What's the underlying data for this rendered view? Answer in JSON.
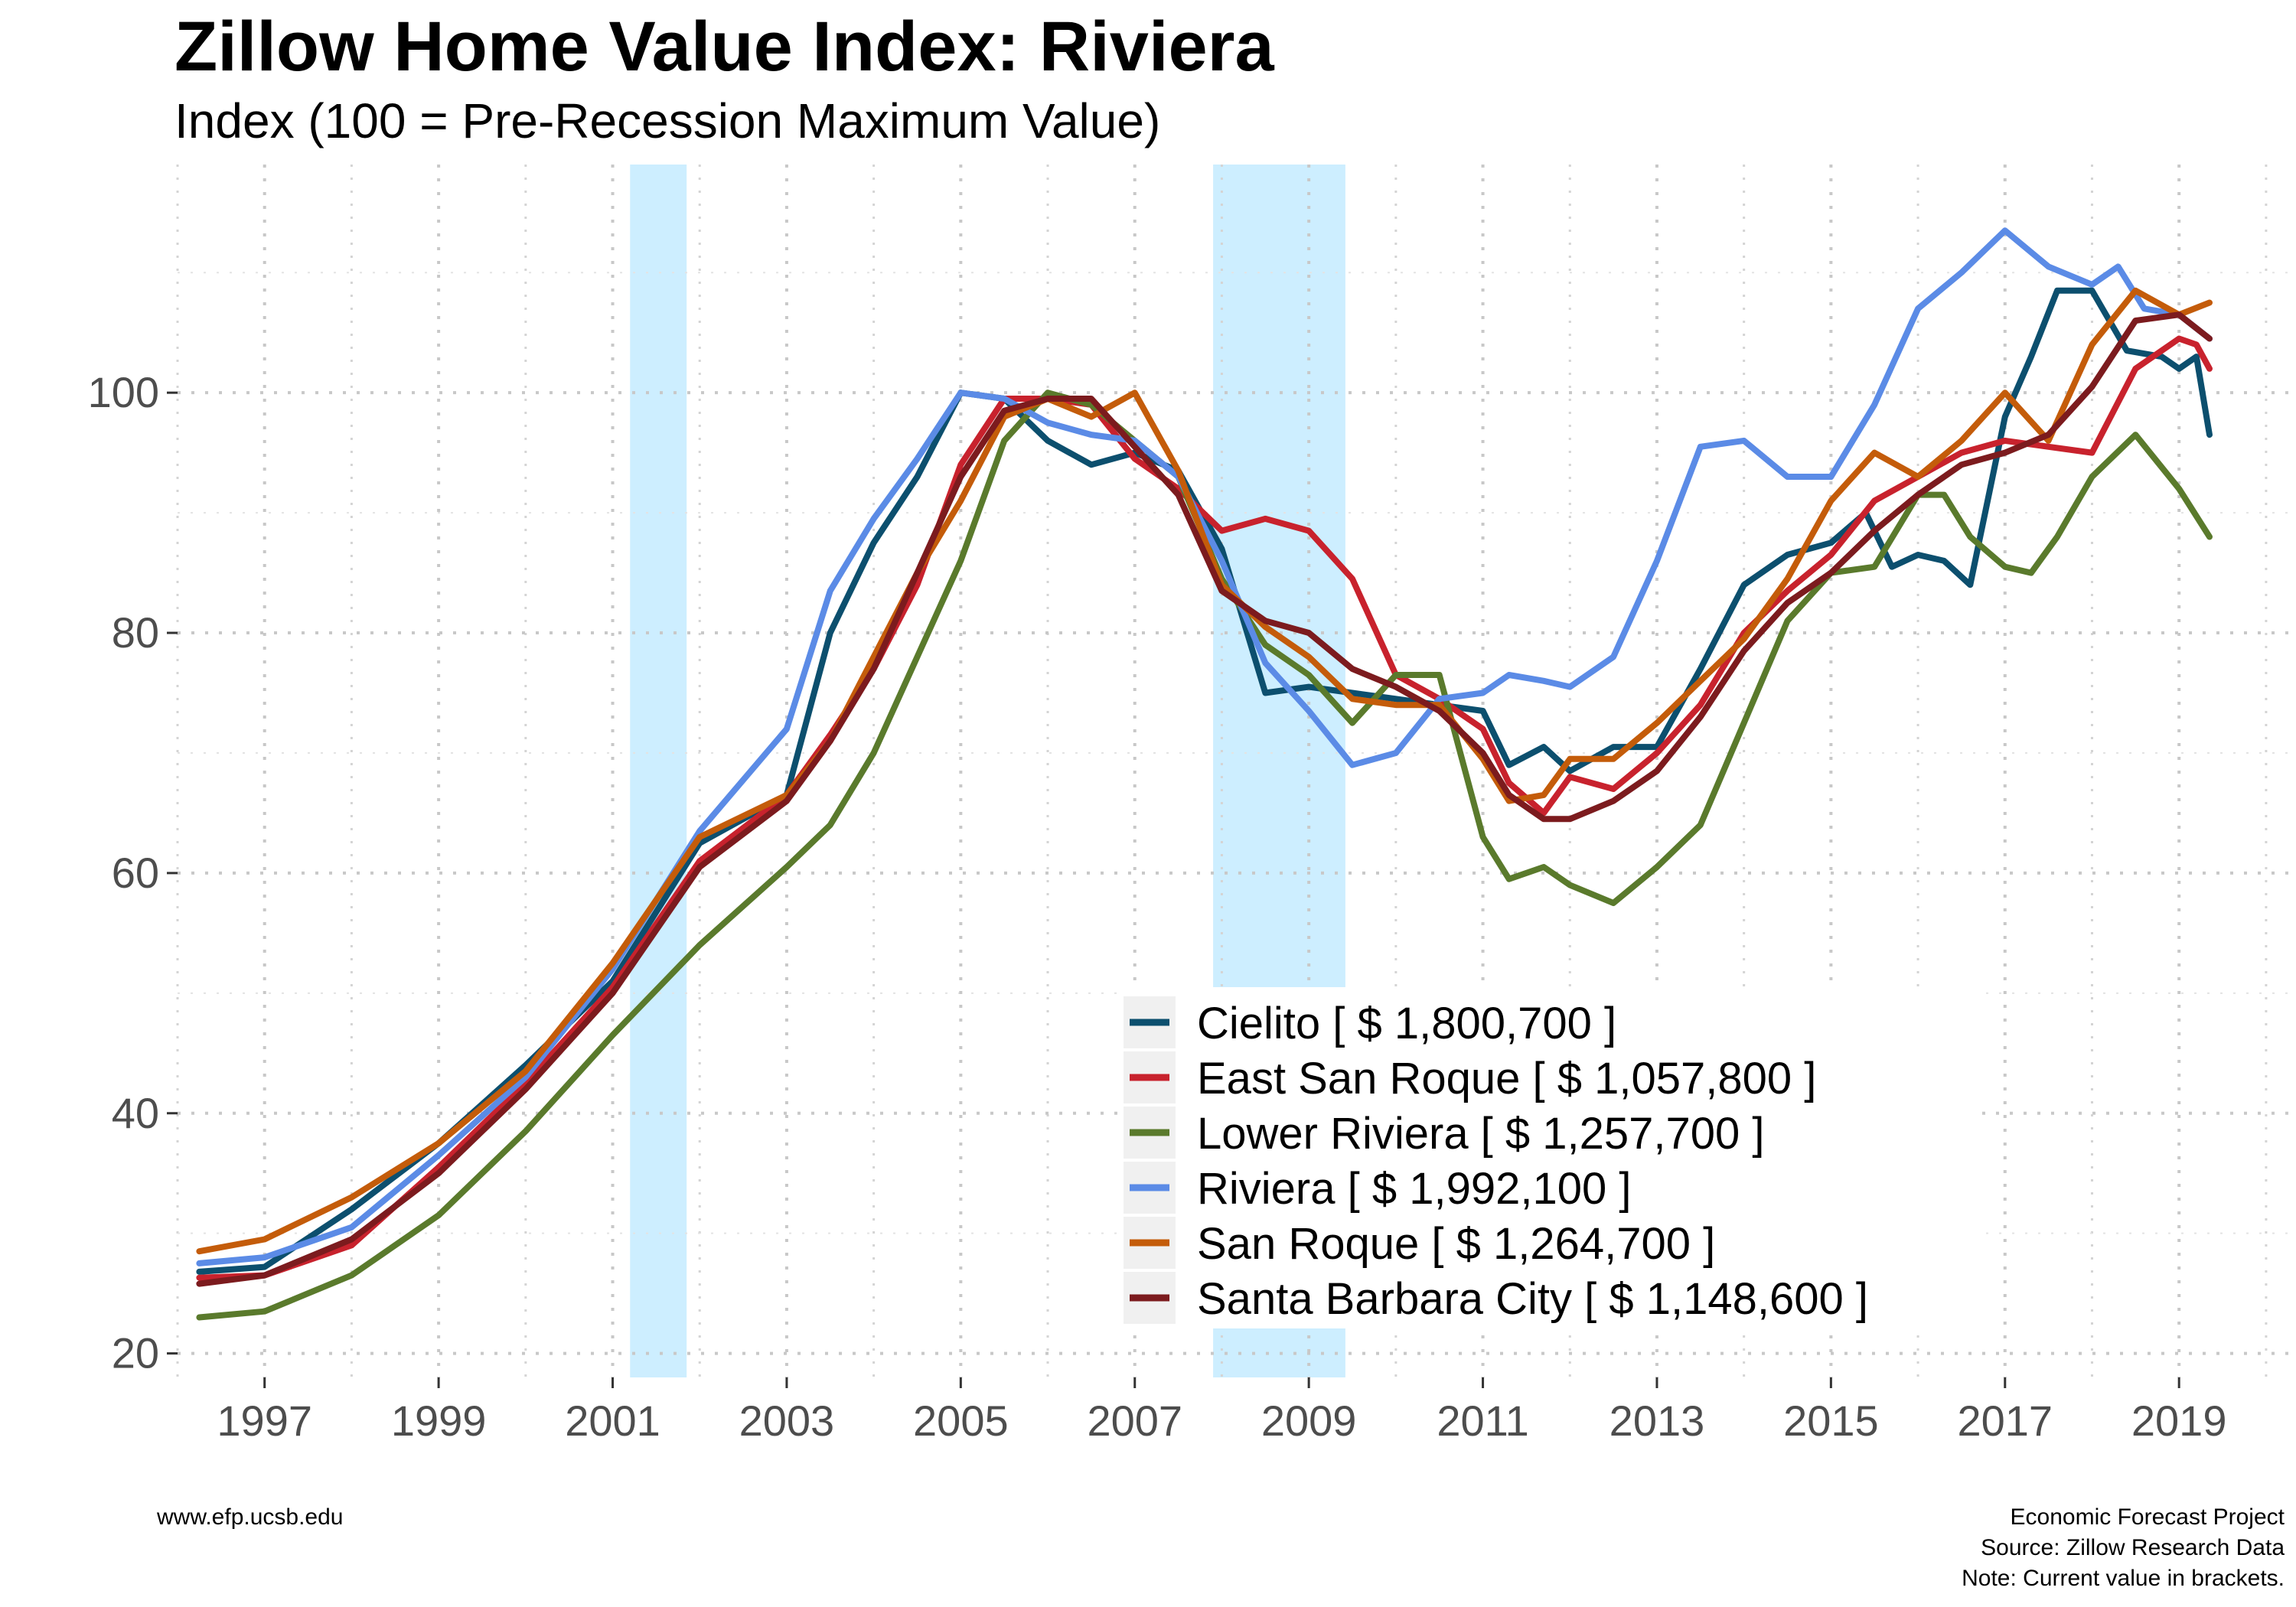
{
  "chart_data": {
    "type": "line",
    "title": "Zillow Home Value Index: Riviera",
    "subtitle": "Index (100 = Pre-Recession Maximum Value)",
    "xlim": [
      1996.0,
      2020.3
    ],
    "ylim": [
      18,
      119
    ],
    "x_ticks": [
      1997,
      1999,
      2001,
      2003,
      2005,
      2007,
      2009,
      2011,
      2013,
      2015,
      2017,
      2019
    ],
    "y_ticks": [
      20,
      40,
      60,
      80,
      100
    ],
    "grid": true,
    "grid_style": "dotted",
    "recessions": [
      {
        "start": 2001.2,
        "end": 2001.85
      },
      {
        "start": 2007.9,
        "end": 2009.42
      }
    ],
    "legend_position": "bottom-right",
    "series": [
      {
        "name": "Cielito [ $ 1,800,700 ]",
        "color": "#0c4f6e",
        "x": [
          1996.25,
          1997,
          1998,
          1999,
          2000,
          2001,
          2002,
          2003,
          2003.5,
          2004,
          2004.5,
          2005,
          2005.5,
          2006,
          2006.5,
          2007,
          2007.5,
          2008,
          2008.5,
          2009,
          2009.5,
          2010,
          2010.5,
          2011,
          2011.3,
          2011.7,
          2012,
          2012.5,
          2013,
          2013.5,
          2014,
          2014.5,
          2015,
          2015.4,
          2015.7,
          2016,
          2016.3,
          2016.6,
          2017,
          2017.3,
          2017.6,
          2018,
          2018.4,
          2018.8,
          2019,
          2019.2,
          2019.35
        ],
        "y": [
          26.8,
          27.2,
          32.0,
          37.5,
          44.0,
          51.0,
          62.5,
          66.5,
          80.0,
          87.5,
          93.0,
          100.0,
          99.5,
          96.0,
          94.0,
          95.0,
          93.5,
          87.0,
          75.0,
          75.5,
          75.0,
          74.5,
          74.0,
          73.5,
          69.0,
          70.5,
          68.5,
          70.5,
          70.5,
          77.0,
          84.0,
          86.5,
          87.5,
          90.0,
          85.5,
          86.5,
          86.0,
          84.0,
          98.0,
          103.0,
          108.5,
          108.5,
          103.5,
          103.0,
          102.0,
          103.0,
          96.5
        ]
      },
      {
        "name": "East San Roque [ $ 1,057,800 ]",
        "color": "#c8222d",
        "x": [
          1996.25,
          1997,
          1998,
          1999,
          2000,
          2001,
          2002,
          2003,
          2003.5,
          2004,
          2004.5,
          2005,
          2005.5,
          2006,
          2006.5,
          2007,
          2007.5,
          2008,
          2008.5,
          2009,
          2009.5,
          2010,
          2010.5,
          2011,
          2011.3,
          2011.7,
          2012,
          2012.5,
          2013,
          2013.5,
          2014,
          2014.5,
          2015,
          2015.5,
          2016,
          2016.5,
          2017,
          2017.5,
          2018,
          2018.5,
          2019,
          2019.2,
          2019.35
        ],
        "y": [
          26.3,
          26.5,
          29.0,
          35.5,
          42.5,
          50.5,
          61.0,
          66.5,
          71.5,
          77.0,
          84.0,
          94.0,
          99.5,
          99.5,
          99.0,
          94.5,
          92.0,
          88.5,
          89.5,
          88.5,
          84.5,
          76.5,
          74.5,
          72.0,
          67.5,
          65.0,
          68.0,
          67.0,
          70.0,
          74.0,
          80.0,
          83.5,
          86.5,
          91.0,
          93.0,
          95.0,
          96.0,
          95.5,
          95.0,
          102.0,
          104.5,
          104.0,
          102.0
        ]
      },
      {
        "name": "Lower Riviera [ $ 1,257,700 ]",
        "color": "#5a7a2c",
        "x": [
          1996.25,
          1997,
          1998,
          1999,
          2000,
          2001,
          2002,
          2003,
          2003.5,
          2004,
          2004.5,
          2005,
          2005.5,
          2006,
          2006.5,
          2007,
          2007.5,
          2008,
          2008.5,
          2009,
          2009.5,
          2010,
          2010.5,
          2011,
          2011.3,
          2011.7,
          2012,
          2012.5,
          2013,
          2013.5,
          2014,
          2014.5,
          2015,
          2015.5,
          2016,
          2016.3,
          2016.6,
          2017,
          2017.3,
          2017.6,
          2018,
          2018.5,
          2019,
          2019.35
        ],
        "y": [
          23.0,
          23.5,
          26.5,
          31.5,
          38.5,
          46.5,
          54.0,
          60.5,
          64.0,
          70.0,
          78.0,
          86.0,
          96.0,
          100.0,
          99.0,
          96.0,
          93.0,
          84.5,
          79.0,
          76.5,
          72.5,
          76.5,
          76.5,
          63.0,
          59.5,
          60.5,
          59.0,
          57.5,
          60.5,
          64.0,
          72.5,
          81.0,
          85.0,
          85.5,
          91.5,
          91.5,
          88.0,
          85.5,
          85.0,
          88.0,
          93.0,
          96.5,
          92.0,
          88.0
        ]
      },
      {
        "name": "Riviera [ $ 1,992,100 ]",
        "color": "#5b8be6",
        "x": [
          1996.25,
          1997,
          1998,
          1999,
          2000,
          2001,
          2002,
          2003,
          2003.5,
          2004,
          2004.5,
          2005,
          2005.5,
          2006,
          2006.5,
          2007,
          2007.5,
          2008,
          2008.5,
          2009,
          2009.5,
          2010,
          2010.5,
          2011,
          2011.3,
          2011.7,
          2012,
          2012.5,
          2013,
          2013.5,
          2014,
          2014.5,
          2015,
          2015.5,
          2016,
          2016.5,
          2017,
          2017.5,
          2018,
          2018.3,
          2018.6,
          2019,
          2019.35
        ],
        "y": [
          27.5,
          28.0,
          30.5,
          36.5,
          43.0,
          52.0,
          63.5,
          72.0,
          83.5,
          89.5,
          94.5,
          100.0,
          99.5,
          97.5,
          96.5,
          96.0,
          93.0,
          86.0,
          77.5,
          73.5,
          69.0,
          70.0,
          74.5,
          75.0,
          76.5,
          76.0,
          75.5,
          78.0,
          86.0,
          95.5,
          96.0,
          93.0,
          93.0,
          99.0,
          107.0,
          110.0,
          113.5,
          110.5,
          109.0,
          110.5,
          107.0,
          106.5,
          104.5
        ]
      },
      {
        "name": "San Roque [ $ 1,264,700 ]",
        "color": "#c45c0a",
        "x": [
          1996.25,
          1997,
          1998,
          1999,
          2000,
          2001,
          2002,
          2003,
          2003.5,
          2004,
          2004.5,
          2005,
          2005.5,
          2006,
          2006.5,
          2007,
          2007.5,
          2008,
          2008.5,
          2009,
          2009.5,
          2010,
          2010.5,
          2011,
          2011.3,
          2011.7,
          2012,
          2012.5,
          2013,
          2013.5,
          2014,
          2014.5,
          2015,
          2015.5,
          2016,
          2016.5,
          2017,
          2017.5,
          2018,
          2018.5,
          2019,
          2019.35
        ],
        "y": [
          28.5,
          29.5,
          33.0,
          37.5,
          43.5,
          52.5,
          63.0,
          66.5,
          71.0,
          78.0,
          85.0,
          91.0,
          98.0,
          99.5,
          98.0,
          100.0,
          93.5,
          84.0,
          80.5,
          78.0,
          74.5,
          74.0,
          74.0,
          69.5,
          66.0,
          66.5,
          69.5,
          69.5,
          72.5,
          76.0,
          79.5,
          84.5,
          91.0,
          95.0,
          93.0,
          96.0,
          100.0,
          96.0,
          104.0,
          108.5,
          106.5,
          107.5
        ]
      },
      {
        "name": "Santa Barbara City [ $ 1,148,600 ]",
        "color": "#7c1b1e",
        "x": [
          1996.25,
          1997,
          1998,
          1999,
          2000,
          2001,
          2002,
          2003,
          2003.5,
          2004,
          2004.5,
          2005,
          2005.5,
          2006,
          2006.5,
          2007,
          2007.5,
          2008,
          2008.5,
          2009,
          2009.5,
          2010,
          2010.5,
          2011,
          2011.3,
          2011.7,
          2012,
          2012.5,
          2013,
          2013.5,
          2014,
          2014.5,
          2015,
          2015.5,
          2016,
          2016.5,
          2017,
          2017.5,
          2018,
          2018.5,
          2019,
          2019.35
        ],
        "y": [
          25.8,
          26.5,
          29.5,
          35.0,
          42.0,
          50.0,
          60.5,
          66.0,
          71.0,
          77.0,
          85.0,
          93.0,
          98.5,
          99.5,
          99.5,
          95.5,
          91.5,
          83.5,
          81.0,
          80.0,
          77.0,
          75.5,
          73.5,
          70.0,
          66.5,
          64.5,
          64.5,
          66.0,
          68.5,
          73.0,
          78.5,
          82.5,
          85.0,
          88.5,
          91.5,
          94.0,
          95.0,
          96.5,
          100.5,
          106.0,
          106.5,
          104.5
        ]
      }
    ]
  },
  "captions": {
    "left": "www.efp.ucsb.edu",
    "right_line1": "Economic Forecast Project",
    "right_line2": "Source: Zillow Research Data",
    "right_line3": "Note: Current value in brackets."
  }
}
